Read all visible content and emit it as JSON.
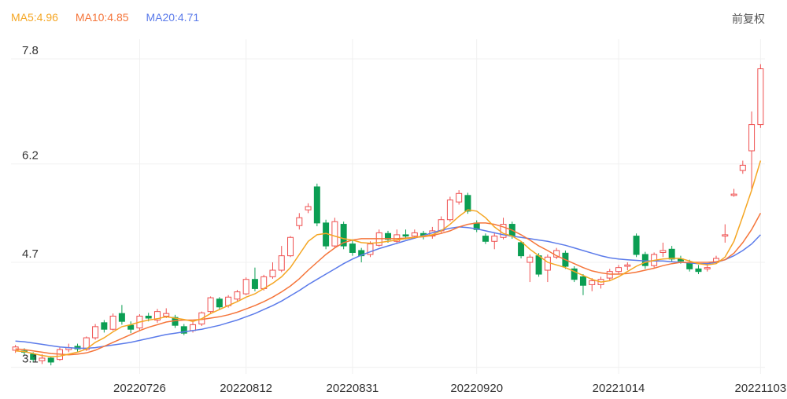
{
  "legend": {
    "ma5_label": "MA5:4.96",
    "ma10_label": "MA10:4.85",
    "ma20_label": "MA20:4.71",
    "ma5_color": "#f5a623",
    "ma10_color": "#f5753a",
    "ma20_color": "#5b7bea"
  },
  "adjust_toggle": "前复权",
  "colors": {
    "up": "#ef4f4f",
    "down": "#0b9e53",
    "grid": "#f0f0f0"
  },
  "chart_data": {
    "type": "candlestick",
    "y_ticks": [
      "7.8",
      "6.2",
      "4.7",
      "3.1"
    ],
    "y_tick_values": [
      7.8,
      6.2,
      4.7,
      3.1
    ],
    "x_ticks": [
      "20220726",
      "20220812",
      "20220831",
      "20220920",
      "20221014",
      "20221103"
    ],
    "x_tick_index": [
      14,
      26,
      38,
      52,
      68,
      84
    ],
    "ylim": [
      3.0,
      8.1
    ],
    "grid": true,
    "candles": [
      [
        3.36,
        3.41,
        3.32,
        3.44
      ],
      [
        3.35,
        3.33,
        3.29,
        3.39
      ],
      [
        3.3,
        3.22,
        3.18,
        3.33
      ],
      [
        3.2,
        3.24,
        3.15,
        3.3
      ],
      [
        3.24,
        3.18,
        3.13,
        3.27
      ],
      [
        3.22,
        3.37,
        3.2,
        3.4
      ],
      [
        3.37,
        3.4,
        3.33,
        3.46
      ],
      [
        3.42,
        3.38,
        3.34,
        3.46
      ],
      [
        3.37,
        3.55,
        3.35,
        3.57
      ],
      [
        3.55,
        3.72,
        3.52,
        3.76
      ],
      [
        3.78,
        3.68,
        3.63,
        3.82
      ],
      [
        3.68,
        3.88,
        3.66,
        3.92
      ],
      [
        3.92,
        3.8,
        3.75,
        4.05
      ],
      [
        3.74,
        3.68,
        3.62,
        3.8
      ],
      [
        3.7,
        3.88,
        3.66,
        3.91
      ],
      [
        3.88,
        3.85,
        3.8,
        3.93
      ],
      [
        3.82,
        3.95,
        3.78,
        3.99
      ],
      [
        3.88,
        3.92,
        3.85,
        4.0
      ],
      [
        3.86,
        3.74,
        3.7,
        3.9
      ],
      [
        3.72,
        3.62,
        3.59,
        3.76
      ],
      [
        3.66,
        3.75,
        3.63,
        3.8
      ],
      [
        3.76,
        3.93,
        3.73,
        3.95
      ],
      [
        3.95,
        4.16,
        3.92,
        4.18
      ],
      [
        4.14,
        4.02,
        3.98,
        4.17
      ],
      [
        4.04,
        4.17,
        4.01,
        4.2
      ],
      [
        4.14,
        4.25,
        4.11,
        4.28
      ],
      [
        4.22,
        4.44,
        4.2,
        4.47
      ],
      [
        4.44,
        4.3,
        4.26,
        4.62
      ],
      [
        4.3,
        4.48,
        4.27,
        4.51
      ],
      [
        4.48,
        4.58,
        4.45,
        4.7
      ],
      [
        4.58,
        4.8,
        4.55,
        4.95
      ],
      [
        4.8,
        5.08,
        4.78,
        5.1
      ],
      [
        5.26,
        5.38,
        5.2,
        5.45
      ],
      [
        5.5,
        5.55,
        5.45,
        5.6
      ],
      [
        5.85,
        5.3,
        5.25,
        5.9
      ],
      [
        5.3,
        4.95,
        4.9,
        5.35
      ],
      [
        4.95,
        5.32,
        4.93,
        5.38
      ],
      [
        5.28,
        4.95,
        4.9,
        5.32
      ],
      [
        4.98,
        4.85,
        4.8,
        5.05
      ],
      [
        4.88,
        4.8,
        4.7,
        4.92
      ],
      [
        4.82,
        4.98,
        4.78,
        5.02
      ],
      [
        4.96,
        5.15,
        4.94,
        5.2
      ],
      [
        5.14,
        5.05,
        5.0,
        5.18
      ],
      [
        5.02,
        5.12,
        4.99,
        5.2
      ],
      [
        5.12,
        5.1,
        5.05,
        5.2
      ],
      [
        5.1,
        5.15,
        5.06,
        5.2
      ],
      [
        5.14,
        5.1,
        5.05,
        5.18
      ],
      [
        5.1,
        5.18,
        5.06,
        5.24
      ],
      [
        5.18,
        5.35,
        5.15,
        5.4
      ],
      [
        5.35,
        5.65,
        5.32,
        5.7
      ],
      [
        5.62,
        5.75,
        5.58,
        5.8
      ],
      [
        5.72,
        5.48,
        5.44,
        5.76
      ],
      [
        5.3,
        5.2,
        5.16,
        5.34
      ],
      [
        5.1,
        5.02,
        4.98,
        5.14
      ],
      [
        5.02,
        5.1,
        4.9,
        5.15
      ],
      [
        5.08,
        5.28,
        5.05,
        5.38
      ],
      [
        5.28,
        5.1,
        5.06,
        5.32
      ],
      [
        5.0,
        4.8,
        4.76,
        5.02
      ],
      [
        4.7,
        4.78,
        4.4,
        4.82
      ],
      [
        4.8,
        4.52,
        4.48,
        4.84
      ],
      [
        4.58,
        4.78,
        4.4,
        4.82
      ],
      [
        4.78,
        4.88,
        4.75,
        4.92
      ],
      [
        4.84,
        4.64,
        4.6,
        4.88
      ],
      [
        4.6,
        4.44,
        4.4,
        4.64
      ],
      [
        4.48,
        4.35,
        4.2,
        4.52
      ],
      [
        4.36,
        4.42,
        4.26,
        4.46
      ],
      [
        4.36,
        4.44,
        4.3,
        4.48
      ],
      [
        4.46,
        4.56,
        4.42,
        4.6
      ],
      [
        4.56,
        4.62,
        4.52,
        4.66
      ],
      [
        4.64,
        4.66,
        4.58,
        4.7
      ],
      [
        5.1,
        4.82,
        4.78,
        5.14
      ],
      [
        4.82,
        4.65,
        4.6,
        4.86
      ],
      [
        4.65,
        4.82,
        4.62,
        4.85
      ],
      [
        4.85,
        4.88,
        4.78,
        5.0
      ],
      [
        4.9,
        4.75,
        4.7,
        4.95
      ],
      [
        4.75,
        4.72,
        4.68,
        4.8
      ],
      [
        4.7,
        4.6,
        4.56,
        4.74
      ],
      [
        4.6,
        4.56,
        4.52,
        4.66
      ],
      [
        4.6,
        4.62,
        4.56,
        4.66
      ],
      [
        4.7,
        4.76,
        4.68,
        4.8
      ],
      [
        5.1,
        5.12,
        5.0,
        5.28
      ],
      [
        5.72,
        5.74,
        5.7,
        5.82
      ],
      [
        6.1,
        6.18,
        6.05,
        6.25
      ],
      [
        6.4,
        6.8,
        5.8,
        7.0
      ],
      [
        6.8,
        7.65,
        6.75,
        7.72
      ]
    ],
    "ma5": [
      3.35,
      3.34,
      3.31,
      3.28,
      3.26,
      3.27,
      3.3,
      3.33,
      3.38,
      3.48,
      3.55,
      3.64,
      3.72,
      3.75,
      3.79,
      3.82,
      3.84,
      3.87,
      3.85,
      3.83,
      3.8,
      3.84,
      3.92,
      3.98,
      4.04,
      4.1,
      4.17,
      4.22,
      4.3,
      4.38,
      4.48,
      4.62,
      4.82,
      5.02,
      5.12,
      5.14,
      5.1,
      5.06,
      5.04,
      5.0,
      4.99,
      5.0,
      5.02,
      5.04,
      5.06,
      5.08,
      5.1,
      5.12,
      5.18,
      5.28,
      5.4,
      5.5,
      5.48,
      5.38,
      5.24,
      5.14,
      5.1,
      5.02,
      4.9,
      4.8,
      4.7,
      4.66,
      4.62,
      4.56,
      4.5,
      4.44,
      4.4,
      4.42,
      4.48,
      4.56,
      4.64,
      4.7,
      4.73,
      4.75,
      4.76,
      4.76,
      4.72,
      4.68,
      4.66,
      4.68,
      4.78,
      5.02,
      5.4,
      5.8,
      6.25
    ],
    "ma10": [
      3.38,
      3.37,
      3.35,
      3.33,
      3.31,
      3.3,
      3.29,
      3.3,
      3.32,
      3.36,
      3.42,
      3.48,
      3.54,
      3.6,
      3.66,
      3.71,
      3.75,
      3.79,
      3.81,
      3.82,
      3.82,
      3.83,
      3.85,
      3.87,
      3.9,
      3.94,
      3.99,
      4.04,
      4.1,
      4.17,
      4.25,
      4.34,
      4.45,
      4.58,
      4.7,
      4.82,
      4.92,
      5.0,
      5.04,
      5.06,
      5.06,
      5.06,
      5.06,
      5.06,
      5.07,
      5.08,
      5.09,
      5.11,
      5.14,
      5.18,
      5.24,
      5.28,
      5.3,
      5.3,
      5.28,
      5.24,
      5.19,
      5.12,
      5.04,
      4.95,
      4.88,
      4.8,
      4.74,
      4.68,
      4.62,
      4.57,
      4.54,
      4.52,
      4.52,
      4.53,
      4.55,
      4.58,
      4.61,
      4.65,
      4.68,
      4.7,
      4.7,
      4.7,
      4.7,
      4.71,
      4.74,
      4.84,
      5.0,
      5.2,
      5.45
    ],
    "ma20": [
      3.5,
      3.49,
      3.47,
      3.45,
      3.43,
      3.41,
      3.4,
      3.39,
      3.39,
      3.4,
      3.42,
      3.44,
      3.46,
      3.48,
      3.51,
      3.54,
      3.57,
      3.6,
      3.62,
      3.64,
      3.66,
      3.68,
      3.71,
      3.74,
      3.78,
      3.82,
      3.87,
      3.92,
      3.98,
      4.04,
      4.11,
      4.19,
      4.27,
      4.36,
      4.44,
      4.52,
      4.6,
      4.68,
      4.75,
      4.81,
      4.86,
      4.91,
      4.95,
      4.99,
      5.03,
      5.07,
      5.11,
      5.15,
      5.19,
      5.22,
      5.24,
      5.23,
      5.21,
      5.18,
      5.15,
      5.12,
      5.1,
      5.08,
      5.06,
      5.04,
      5.02,
      4.99,
      4.96,
      4.92,
      4.88,
      4.84,
      4.8,
      4.77,
      4.75,
      4.74,
      4.73,
      4.72,
      4.72,
      4.72,
      4.71,
      4.7,
      4.69,
      4.68,
      4.68,
      4.7,
      4.74,
      4.8,
      4.88,
      4.98,
      5.12
    ]
  }
}
